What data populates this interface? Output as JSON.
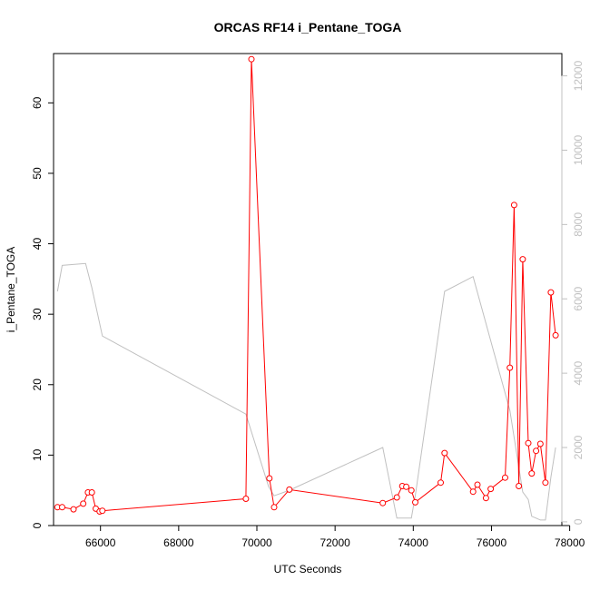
{
  "chart_data": {
    "type": "line",
    "title": "ORCAS RF14 i_Pentane_TOGA",
    "xlabel": "UTC Seconds",
    "ylabel": "i_Pentane_TOGA",
    "xlim": [
      64800,
      77800
    ],
    "ylim": [
      0,
      67
    ],
    "y2lim": [
      -100,
      12600
    ],
    "x_ticks": [
      66000,
      68000,
      70000,
      72000,
      74000,
      76000,
      78000
    ],
    "y_ticks": [
      0,
      10,
      20,
      30,
      40,
      50,
      60
    ],
    "y2_ticks": [
      0,
      2000,
      4000,
      6000,
      8000,
      10000,
      12000
    ],
    "grid": false,
    "colors": {
      "primary": "#ff0000",
      "secondary": "#c0c0c0",
      "axis": "#000000"
    },
    "series": [
      {
        "axis": "left",
        "style": "line+markers",
        "color": "#ff0000",
        "x": [
          64900,
          65020,
          65310,
          65560,
          65680,
          65780,
          65880,
          65980,
          66050,
          69720,
          69860,
          70320,
          70440,
          70830,
          73220,
          73580,
          73720,
          73820,
          73950,
          74050,
          74700,
          74800,
          75530,
          75640,
          75860,
          75980,
          76350,
          76470,
          76580,
          76700,
          76800,
          76940,
          77030,
          77140,
          77250,
          77380,
          77520,
          77640
        ],
        "y": [
          2.6,
          2.6,
          2.3,
          3.1,
          4.7,
          4.7,
          2.4,
          2.0,
          2.1,
          3.8,
          66.2,
          6.7,
          2.6,
          5.1,
          3.2,
          4.0,
          5.6,
          5.5,
          5.0,
          3.3,
          6.1,
          10.3,
          4.8,
          5.8,
          3.9,
          5.2,
          6.8,
          22.4,
          45.5,
          5.6,
          37.8,
          11.7,
          7.4,
          10.6,
          11.6,
          6.1,
          33.1,
          27.0
        ]
      },
      {
        "axis": "right",
        "style": "line",
        "color": "#c0c0c0",
        "x": [
          64900,
          65020,
          65620,
          65780,
          66050,
          69720,
          70300,
          70440,
          70830,
          73220,
          73580,
          73720,
          73820,
          73950,
          74050,
          74800,
          75530,
          76470,
          76800,
          76940,
          77030,
          77140,
          77250,
          77380,
          77520,
          77640
        ],
        "y": [
          6200,
          6900,
          6950,
          6300,
          5000,
          2900,
          950,
          700,
          850,
          2000,
          100,
          100,
          100,
          100,
          700,
          6200,
          6600,
          3000,
          800,
          600,
          150,
          100,
          50,
          50,
          1200,
          2000
        ]
      }
    ]
  }
}
